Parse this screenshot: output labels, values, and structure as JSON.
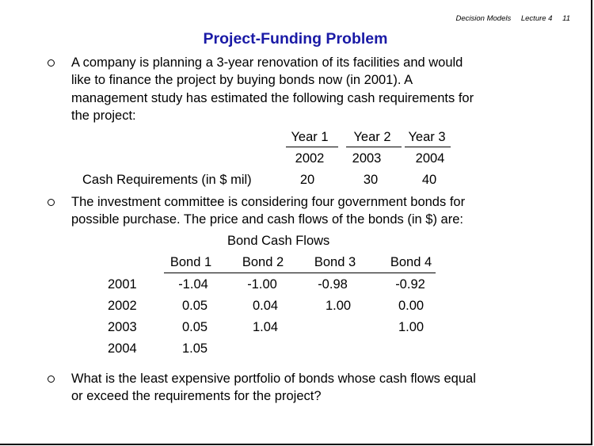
{
  "header": {
    "course": "Decision Models",
    "lecture": "Lecture 4",
    "page": "11"
  },
  "title": "Project-Funding Problem",
  "bullets": {
    "b1": [
      "A company is planning a 3-year renovation of its facilities and would",
      "like to finance the project by buying bonds now (in 2001).  A",
      "management study has estimated the following cash  requirements for",
      "the project:"
    ],
    "b2": [
      "The investment committee is considering four government bonds for",
      "possible purchase.  The price and cash flows of the bonds (in $) are:"
    ],
    "b3": [
      "What is the least expensive portfolio of bonds whose cash flows equal",
      "or exceed the requirements for the project?"
    ]
  },
  "requirements_table": {
    "columns": [
      "Year 1",
      "Year 2",
      "Year 3"
    ],
    "years": [
      "2002",
      "2003",
      "2004"
    ],
    "row_label": "Cash Requirements (in $ mil)",
    "values": [
      "20",
      "30",
      "40"
    ]
  },
  "bond_table": {
    "caption": "Bond Cash Flows",
    "columns": [
      "Bond 1",
      "Bond 2",
      "Bond 3",
      "Bond 4"
    ],
    "rows": [
      {
        "year": "2001",
        "cells": [
          "-1.04",
          "-1.00",
          "-0.98",
          "-0.92"
        ]
      },
      {
        "year": "2002",
        "cells": [
          "0.05",
          "0.04",
          "1.00",
          "0.00"
        ]
      },
      {
        "year": "2003",
        "cells": [
          "0.05",
          "1.04",
          "",
          "1.00"
        ]
      },
      {
        "year": "2004",
        "cells": [
          "1.05",
          "",
          "",
          ""
        ]
      }
    ]
  }
}
